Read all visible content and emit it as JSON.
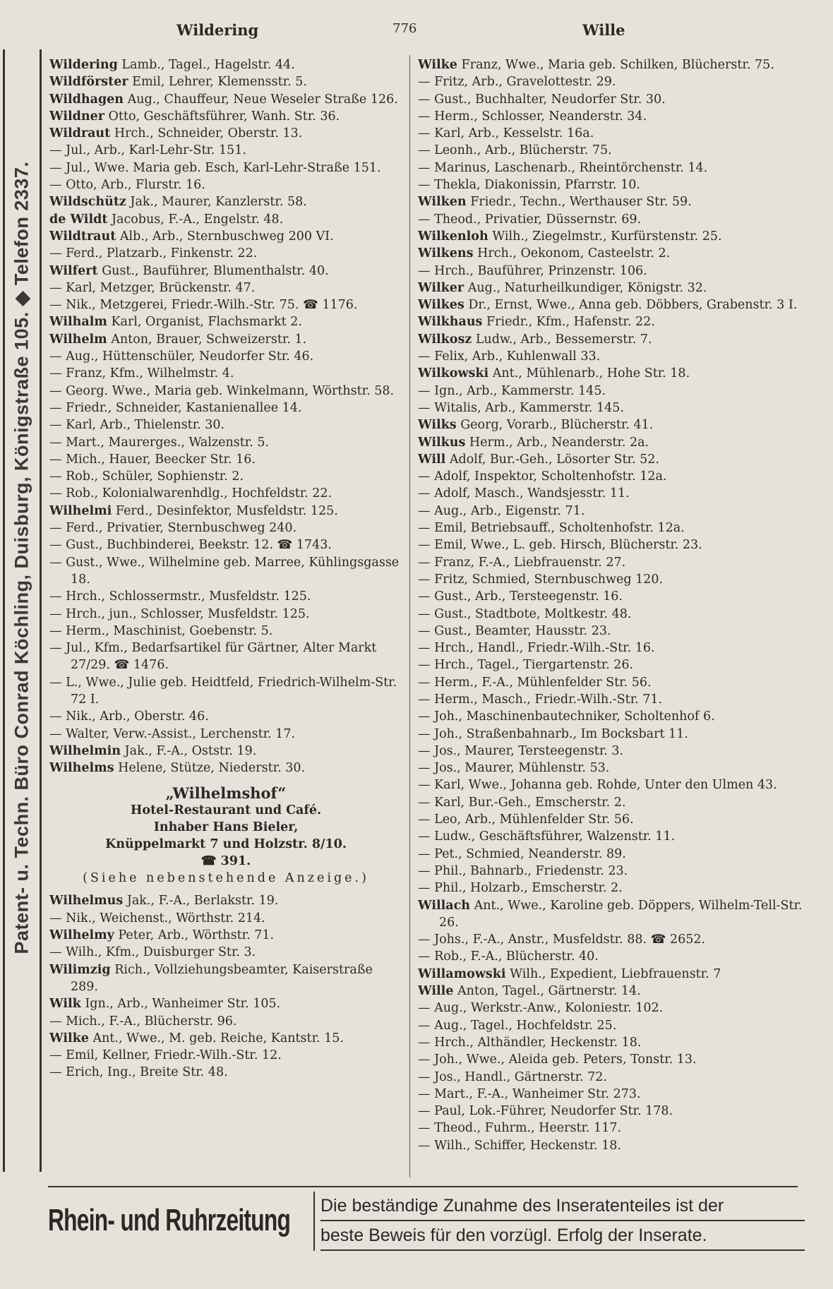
{
  "header": {
    "left": "Wildering",
    "page": "776",
    "right": "Wille"
  },
  "side_advert": "Patent- u. Techn. Büro Conrad Köchling, Duisburg, Königstraße 105. ◆ Telefon 2337.",
  "left_entries_a": [
    {
      "name": "Wildering",
      "rest": "Lamb., Tagel., Hagelstr. 44."
    },
    {
      "name": "Wildförster",
      "rest": "Emil, Lehrer, Klemensstr. 5."
    },
    {
      "name": "Wildhagen",
      "rest": "Aug., Chauffeur, Neue Weseler Straße 126."
    },
    {
      "name": "Wildner",
      "rest": "Otto, Geschäftsführer, Wanh. Str. 36."
    },
    {
      "name": "Wildraut",
      "rest": "Hrch., Schneider, Oberstr. 13."
    },
    {
      "name": "—",
      "rest": "Jul., Arb., Karl-Lehr-Str. 151."
    },
    {
      "name": "—",
      "rest": "Jul., Wwe. Maria geb. Esch, Karl-Lehr-Straße 151."
    },
    {
      "name": "—",
      "rest": "Otto, Arb., Flurstr. 16."
    },
    {
      "name": "Wildschütz",
      "rest": "Jak., Maurer, Kanzlerstr. 58."
    },
    {
      "name": "de Wildt",
      "rest": "Jacobus, F.-A., Engelstr. 48."
    },
    {
      "name": "Wildtraut",
      "rest": "Alb., Arb., Sternbuschweg 200 VI."
    },
    {
      "name": "—",
      "rest": "Ferd., Platzarb., Finkenstr. 22."
    },
    {
      "name": "Wilfert",
      "rest": "Gust., Bauführer, Blumenthalstr. 40."
    },
    {
      "name": "—",
      "rest": "Karl, Metzger, Brückenstr. 47."
    },
    {
      "name": "—",
      "rest": "Nik., Metzgerei, Friedr.-Wilh.-Str. 75. ☎ 1176."
    },
    {
      "name": "Wilhalm",
      "rest": "Karl, Organist, Flachsmarkt 2."
    },
    {
      "name": "Wilhelm",
      "rest": "Anton, Brauer, Schweizerstr. 1."
    },
    {
      "name": "—",
      "rest": "Aug., Hüttenschüler, Neudorfer Str. 46."
    },
    {
      "name": "—",
      "rest": "Franz, Kfm., Wilhelmstr. 4."
    },
    {
      "name": "—",
      "rest": "Georg. Wwe., Maria geb. Winkelmann, Wörthstr. 58."
    },
    {
      "name": "—",
      "rest": "Friedr., Schneider, Kastanienallee 14."
    },
    {
      "name": "—",
      "rest": "Karl, Arb., Thielenstr. 30."
    },
    {
      "name": "—",
      "rest": "Mart., Maurerges., Walzenstr. 5."
    },
    {
      "name": "—",
      "rest": "Mich., Hauer, Beecker Str. 16."
    },
    {
      "name": "—",
      "rest": "Rob., Schüler, Sophienstr. 2."
    },
    {
      "name": "—",
      "rest": "Rob., Kolonialwarenhdlg., Hochfeldstr. 22."
    },
    {
      "name": "Wilhelmi",
      "rest": "Ferd., Desinfektor, Musfeldstr. 125."
    },
    {
      "name": "—",
      "rest": "Ferd., Privatier, Sternbuschweg 240."
    },
    {
      "name": "—",
      "rest": "Gust., Buchbinderei, Beekstr. 12. ☎ 1743."
    },
    {
      "name": "—",
      "rest": "Gust., Wwe., Wilhelmine geb. Marree, Kühlingsgasse 18."
    },
    {
      "name": "—",
      "rest": "Hrch., Schlossermstr., Musfeldstr. 125."
    },
    {
      "name": "—",
      "rest": "Hrch., jun., Schlosser, Musfeldstr. 125."
    },
    {
      "name": "—",
      "rest": "Herm., Maschinist, Goebenstr. 5."
    },
    {
      "name": "—",
      "rest": "Jul., Kfm., Bedarfsartikel für Gärtner, Alter Markt 27/29. ☎ 1476."
    },
    {
      "name": "—",
      "rest": "L., Wwe., Julie geb. Heidtfeld, Friedrich-Wilhelm-Str. 72 I."
    },
    {
      "name": "—",
      "rest": "Nik., Arb., Oberstr. 46."
    },
    {
      "name": "—",
      "rest": "Walter, Verw.-Assist., Lerchenstr. 17."
    },
    {
      "name": "Wilhelmin",
      "rest": "Jak., F.-A., Oststr. 19."
    },
    {
      "name": "Wilhelms",
      "rest": "Helene, Stütze, Niederstr. 30."
    }
  ],
  "ad": {
    "title": "„Wilhelmshof“",
    "line1": "Hotel-Restaurant und Café.",
    "line2": "Inhaber Hans Bieler,",
    "line3": "Knüppelmarkt 7 und Holzstr. 8/10.",
    "phone": "☎ 391.",
    "note": "(Siehe nebenstehende Anzeige.)"
  },
  "left_entries_b": [
    {
      "name": "Wilhelmus",
      "rest": "Jak., F.-A., Berlakstr. 19."
    },
    {
      "name": "—",
      "rest": "Nik., Weichenst., Wörthstr. 214."
    },
    {
      "name": "Wilhelmy",
      "rest": "Peter, Arb., Wörthstr. 71."
    },
    {
      "name": "—",
      "rest": "Wilh., Kfm., Duisburger Str. 3."
    },
    {
      "name": "Wilimzig",
      "rest": "Rich., Vollziehungsbeamter, Kaiserstraße 289."
    },
    {
      "name": "Wilk",
      "rest": "Ign., Arb., Wanheimer Str. 105."
    },
    {
      "name": "—",
      "rest": "Mich., F.-A., Blücherstr. 96."
    },
    {
      "name": "Wilke",
      "rest": "Ant., Wwe., M. geb. Reiche, Kantstr. 15."
    },
    {
      "name": "—",
      "rest": "Emil, Kellner, Friedr.-Wilh.-Str. 12."
    },
    {
      "name": "—",
      "rest": "Erich, Ing., Breite Str. 48."
    }
  ],
  "right_entries": [
    {
      "name": "Wilke",
      "rest": "Franz, Wwe., Maria geb. Schilken, Blücherstr. 75."
    },
    {
      "name": "—",
      "rest": "Fritz, Arb., Gravelottestr. 29."
    },
    {
      "name": "—",
      "rest": "Gust., Buchhalter, Neudorfer Str. 30."
    },
    {
      "name": "—",
      "rest": "Herm., Schlosser, Neanderstr. 34."
    },
    {
      "name": "—",
      "rest": "Karl, Arb., Kesselstr. 16a."
    },
    {
      "name": "—",
      "rest": "Leonh., Arb., Blücherstr. 75."
    },
    {
      "name": "—",
      "rest": "Marinus, Laschenarb., Rheintörchenstr. 14."
    },
    {
      "name": "—",
      "rest": "Thekla, Diakonissin, Pfarrstr. 10."
    },
    {
      "name": "Wilken",
      "rest": "Friedr., Techn., Werthauser Str. 59."
    },
    {
      "name": "—",
      "rest": "Theod., Privatier, Düssernstr. 69."
    },
    {
      "name": "Wilkenloh",
      "rest": "Wilh., Ziegelmstr., Kurfürstenstr. 25."
    },
    {
      "name": "Wilkens",
      "rest": "Hrch., Oekonom, Casteelstr. 2."
    },
    {
      "name": "—",
      "rest": "Hrch., Bauführer, Prinzenstr. 106."
    },
    {
      "name": "Wilker",
      "rest": "Aug., Naturheilkundiger, Königstr. 32."
    },
    {
      "name": "Wilkes",
      "rest": "Dr., Ernst, Wwe., Anna geb. Döbbers, Grabenstr. 3 I."
    },
    {
      "name": "Wilkhaus",
      "rest": "Friedr., Kfm., Hafenstr. 22."
    },
    {
      "name": "Wilkosz",
      "rest": "Ludw., Arb., Bessemerstr. 7."
    },
    {
      "name": "—",
      "rest": "Felix, Arb., Kuhlenwall 33."
    },
    {
      "name": "Wilkowski",
      "rest": "Ant., Mühlenarb., Hohe Str. 18."
    },
    {
      "name": "—",
      "rest": "Ign., Arb., Kammerstr. 145."
    },
    {
      "name": "—",
      "rest": "Witalis, Arb., Kammerstr. 145."
    },
    {
      "name": "Wilks",
      "rest": "Georg, Vorarb., Blücherstr. 41."
    },
    {
      "name": "Wilkus",
      "rest": "Herm., Arb., Neanderstr. 2a."
    },
    {
      "name": "Will",
      "rest": "Adolf, Bur.-Geh., Lösorter Str. 52."
    },
    {
      "name": "—",
      "rest": "Adolf, Inspektor, Scholtenhofstr. 12a."
    },
    {
      "name": "—",
      "rest": "Adolf, Masch., Wandsjesstr. 11."
    },
    {
      "name": "—",
      "rest": "Aug., Arb., Eigenstr. 71."
    },
    {
      "name": "—",
      "rest": "Emil, Betriebsauff., Scholtenhofstr. 12a."
    },
    {
      "name": "—",
      "rest": "Emil, Wwe., L. geb. Hirsch, Blücherstr. 23."
    },
    {
      "name": "—",
      "rest": "Franz, F.-A., Liebfrauenstr. 27."
    },
    {
      "name": "—",
      "rest": "Fritz, Schmied, Sternbuschweg 120."
    },
    {
      "name": "—",
      "rest": "Gust., Arb., Tersteegenstr. 16."
    },
    {
      "name": "—",
      "rest": "Gust., Stadtbote, Moltkestr. 48."
    },
    {
      "name": "—",
      "rest": "Gust., Beamter, Hausstr. 23."
    },
    {
      "name": "—",
      "rest": "Hrch., Handl., Friedr.-Wilh.-Str. 16."
    },
    {
      "name": "—",
      "rest": "Hrch., Tagel., Tiergartenstr. 26."
    },
    {
      "name": "—",
      "rest": "Herm., F.-A., Mühlenfelder Str. 56."
    },
    {
      "name": "—",
      "rest": "Herm., Masch., Friedr.-Wilh.-Str. 71."
    },
    {
      "name": "—",
      "rest": "Joh., Maschinenbautechniker, Scholtenhof 6."
    },
    {
      "name": "—",
      "rest": "Joh., Straßenbahnarb., Im Bocksbart 11."
    },
    {
      "name": "—",
      "rest": "Jos., Maurer, Tersteegenstr. 3."
    },
    {
      "name": "—",
      "rest": "Jos., Maurer, Mühlenstr. 53."
    },
    {
      "name": "—",
      "rest": "Karl, Wwe., Johanna geb. Rohde, Unter den Ulmen 43."
    },
    {
      "name": "—",
      "rest": "Karl, Bur.-Geh., Emscherstr. 2."
    },
    {
      "name": "—",
      "rest": "Leo, Arb., Mühlenfelder Str. 56."
    },
    {
      "name": "—",
      "rest": "Ludw., Geschäftsführer, Walzenstr. 11."
    },
    {
      "name": "—",
      "rest": "Pet., Schmied, Neanderstr. 89."
    },
    {
      "name": "—",
      "rest": "Phil., Bahnarb., Friedenstr. 23."
    },
    {
      "name": "—",
      "rest": "Phil., Holzarb., Emscherstr. 2."
    },
    {
      "name": "Willach",
      "rest": "Ant., Wwe., Karoline geb. Döppers, Wilhelm-Tell-Str. 26."
    },
    {
      "name": "—",
      "rest": "Johs., F.-A., Anstr., Musfeldstr. 88. ☎ 2652."
    },
    {
      "name": "—",
      "rest": "Rob., F.-A., Blücherstr. 40."
    },
    {
      "name": "Willamowski",
      "rest": "Wilh., Expedient, Liebfrauenstr. 7"
    },
    {
      "name": "Wille",
      "rest": "Anton, Tagel., Gärtnerstr. 14."
    },
    {
      "name": "—",
      "rest": "Aug., Werkstr.-Anw., Koloniestr. 102."
    },
    {
      "name": "—",
      "rest": "Aug., Tagel., Hochfeldstr. 25."
    },
    {
      "name": "—",
      "rest": "Hrch., Althändler, Heckenstr. 18."
    },
    {
      "name": "—",
      "rest": "Joh., Wwe., Aleida geb. Peters, Tonstr. 13."
    },
    {
      "name": "—",
      "rest": "Jos., Handl., Gärtnerstr. 72."
    },
    {
      "name": "—",
      "rest": "Mart., F.-A., Wanheimer Str. 273."
    },
    {
      "name": "—",
      "rest": "Paul, Lok.-Führer, Neudorfer Str. 178."
    },
    {
      "name": "—",
      "rest": "Theod., Fuhrm., Heerstr. 117."
    },
    {
      "name": "—",
      "rest": "Wilh., Schiffer, Heckenstr. 18."
    }
  ],
  "banner": {
    "left": "Rhein- und Ruhrzeitung",
    "right_line1": "Die beständige Zunahme des Inseratenteiles ist der",
    "right_line2": "beste Beweis für den vorzügl. Erfolg der Inserate."
  }
}
